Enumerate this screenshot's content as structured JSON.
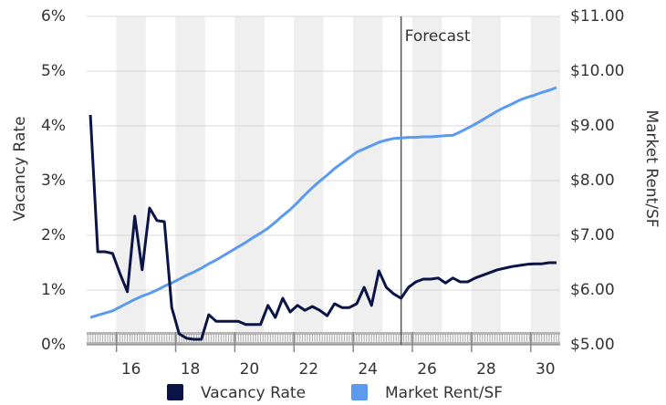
{
  "chart_data": {
    "type": "line",
    "y_label": "Vacancy Rate",
    "y2_label": "Market Rent/SF",
    "x": [
      14.625,
      14.875,
      15.125,
      15.375,
      15.625,
      15.875,
      16.125,
      16.375,
      16.625,
      16.875,
      17.125,
      17.375,
      17.625,
      17.875,
      18.125,
      18.375,
      18.625,
      18.875,
      19.125,
      19.375,
      19.625,
      19.875,
      20.125,
      20.375,
      20.625,
      20.875,
      21.125,
      21.375,
      21.625,
      21.875,
      22.125,
      22.375,
      22.625,
      22.875,
      23.125,
      23.375,
      23.625,
      23.875,
      24.125,
      24.375,
      24.625,
      24.875,
      25.125,
      25.375,
      25.625,
      25.875,
      26.125,
      26.375,
      26.625,
      26.875,
      27.125,
      27.375,
      27.625,
      27.875,
      28.125,
      28.375,
      28.625,
      28.875,
      29.125,
      29.375,
      29.625,
      29.875,
      30.125,
      30.375
    ],
    "series": [
      {
        "name": "Vacancy Rate",
        "color": "#0b1446",
        "axis": "y",
        "values": [
          4.2,
          1.7,
          1.7,
          1.67,
          1.3,
          0.97,
          2.35,
          1.37,
          2.5,
          2.27,
          2.25,
          0.68,
          0.2,
          0.12,
          0.1,
          0.1,
          0.55,
          0.43,
          0.43,
          0.43,
          0.43,
          0.37,
          0.37,
          0.37,
          0.72,
          0.5,
          0.85,
          0.6,
          0.72,
          0.63,
          0.7,
          0.63,
          0.53,
          0.75,
          0.68,
          0.68,
          0.75,
          1.05,
          0.72,
          1.35,
          1.05,
          0.93,
          0.85,
          1.05,
          1.15,
          1.2,
          1.2,
          1.22,
          1.13,
          1.22,
          1.15,
          1.15,
          1.22,
          1.27,
          1.32,
          1.37,
          1.4,
          1.43,
          1.45,
          1.47,
          1.48,
          1.48,
          1.5,
          1.5
        ]
      },
      {
        "name": "Market Rent/SF",
        "color": "#5b9bef",
        "axis": "y2",
        "values": [
          5.5,
          5.54,
          5.58,
          5.62,
          5.69,
          5.76,
          5.83,
          5.89,
          5.94,
          6.0,
          6.07,
          6.13,
          6.2,
          6.27,
          6.33,
          6.4,
          6.48,
          6.55,
          6.63,
          6.71,
          6.79,
          6.87,
          6.96,
          7.04,
          7.13,
          7.24,
          7.36,
          7.47,
          7.6,
          7.74,
          7.87,
          7.99,
          8.1,
          8.22,
          8.32,
          8.42,
          8.52,
          8.58,
          8.64,
          8.7,
          8.74,
          8.77,
          8.78,
          8.79,
          8.79,
          8.8,
          8.8,
          8.81,
          8.82,
          8.83,
          8.89,
          8.96,
          9.03,
          9.11,
          9.19,
          9.27,
          9.34,
          9.4,
          9.47,
          9.52,
          9.56,
          9.61,
          9.65,
          9.7
        ]
      }
    ],
    "xlim": [
      14.5,
      30.5
    ],
    "xticks": [
      16,
      18,
      20,
      22,
      24,
      26,
      28,
      30
    ],
    "ylim": [
      0,
      6
    ],
    "yticks": [
      {
        "value": 0,
        "label": "0%"
      },
      {
        "value": 1,
        "label": "1%"
      },
      {
        "value": 2,
        "label": "2%"
      },
      {
        "value": 3,
        "label": "3%"
      },
      {
        "value": 4,
        "label": "4%"
      },
      {
        "value": 5,
        "label": "5%"
      },
      {
        "value": 6,
        "label": "6%"
      }
    ],
    "y2lim": [
      5,
      11
    ],
    "y2ticks": [
      {
        "value": 5,
        "label": "$5.00"
      },
      {
        "value": 6,
        "label": "$6.00"
      },
      {
        "value": 7,
        "label": "$7.00"
      },
      {
        "value": 8,
        "label": "$8.00"
      },
      {
        "value": 9,
        "label": "$9.00"
      },
      {
        "value": 10,
        "label": "$10.00"
      },
      {
        "value": 11,
        "label": "$11.00"
      }
    ],
    "grid": true,
    "legend": "bottom",
    "forecast": {
      "label": "Forecast",
      "x": 25.125
    }
  }
}
